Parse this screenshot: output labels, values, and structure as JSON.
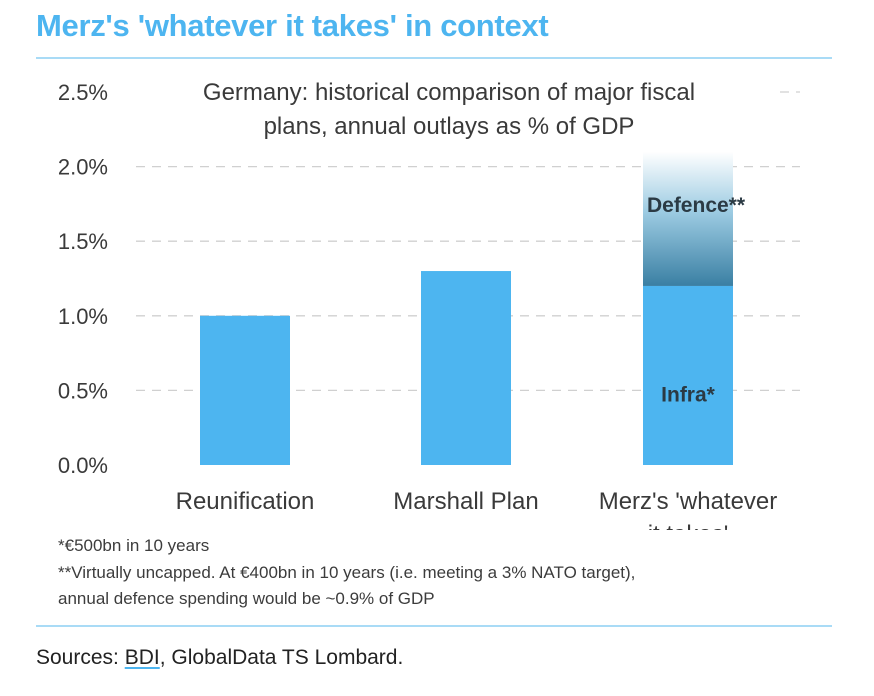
{
  "header": {
    "title": "Merz's 'whatever it takes' in context"
  },
  "chart_data": {
    "type": "bar",
    "title_lines": [
      "Germany: historical comparison of major fiscal",
      "plans, annual outlays as % of GDP"
    ],
    "categories": [
      [
        "Reunification"
      ],
      [
        "Marshall Plan"
      ],
      [
        "Merz's 'whatever",
        "it takes'"
      ]
    ],
    "series": [
      {
        "name": "Infra*",
        "values": [
          1.0,
          1.3,
          1.2
        ]
      },
      {
        "name": "Defence**",
        "values": [
          0,
          0,
          0.9
        ]
      }
    ],
    "ylim": [
      0,
      2.5
    ],
    "yticks": [
      "0.0%",
      "0.5%",
      "1.0%",
      "1.5%",
      "2.0%",
      "2.5%"
    ],
    "grid": true,
    "colors": {
      "bar": "#4db5f0",
      "defence_bottom": "#3a7fa3",
      "defence_top": "#ffffff"
    }
  },
  "notes": [
    "*€500bn in 10 years",
    "**Virtually uncapped. At €400bn in 10 years (i.e. meeting a 3% NATO target),",
    "annual defence spending would be ~0.9% of GDP"
  ],
  "sources": {
    "prefix": "Sources: ",
    "bdi": "BDI",
    "rest": ", GlobalData TS Lombard."
  }
}
